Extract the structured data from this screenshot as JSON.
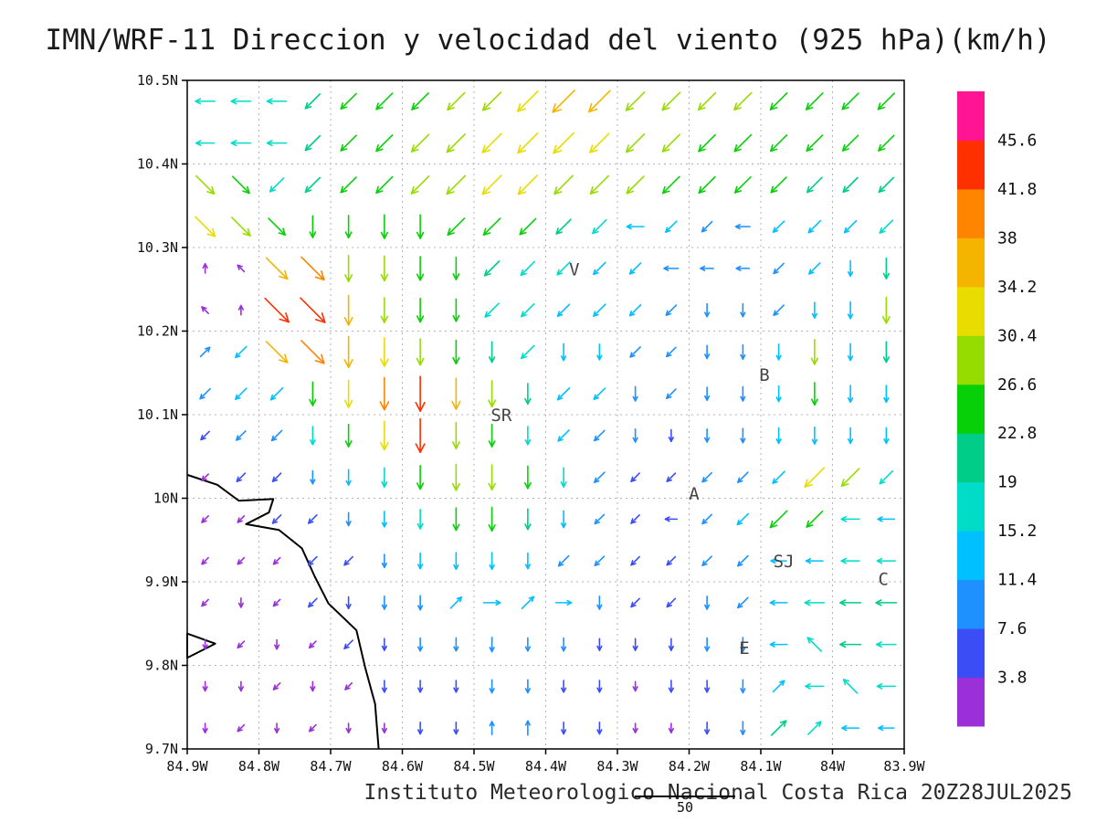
{
  "title": "IMN/WRF-11 Direccion y velocidad del viento (925 hPa)(km/h)",
  "footer": {
    "credit": "Instituto Meteorologico Nacional Costa Rica 20Z28JUL2025",
    "ref_label": "50"
  },
  "chart_data": {
    "type": "quiver",
    "title": "IMN/WRF-11 Direccion y velocidad del viento (925 hPa)(km/h)",
    "units": "km/h",
    "pressure_level": "925 hPa",
    "model": "IMN/WRF-11",
    "valid_time": "20Z28JUL2025",
    "x_axis": {
      "range": [
        84.9,
        83.9
      ],
      "ticks": [
        "84.9W",
        "84.8W",
        "84.7W",
        "84.6W",
        "84.5W",
        "84.4W",
        "84.3W",
        "84.2W",
        "84.1W",
        "84W",
        "83.9W"
      ]
    },
    "y_axis": {
      "range": [
        9.7,
        10.5
      ],
      "ticks": [
        "10.5N",
        "10.4N",
        "10.3N",
        "10.2N",
        "10.1N",
        "10N",
        "9.9N",
        "9.8N",
        "9.7N"
      ]
    },
    "grid": {
      "step_deg": 0.1,
      "style": "dotted"
    },
    "colorbar": {
      "units": "km/h",
      "levels": [
        3.8,
        7.6,
        11.4,
        15.2,
        19,
        22.8,
        26.6,
        30.4,
        34.2,
        38,
        41.8,
        45.6
      ],
      "labels": [
        "3.8",
        "7.6",
        "11.4",
        "15.2",
        "19",
        "22.8",
        "26.6",
        "30.4",
        "34.2",
        "38",
        "41.8",
        "45.6"
      ],
      "colors": [
        "#9b30d9",
        "#3b4ef5",
        "#1e90ff",
        "#00c0ff",
        "#00dcc8",
        "#00cd87",
        "#08d008",
        "#97dc00",
        "#e8dc00",
        "#f4b400",
        "#ff8400",
        "#ff3000",
        "#ff1493"
      ]
    },
    "stations": [
      {
        "label": "V",
        "lon": 84.36,
        "lat": 10.273
      },
      {
        "label": "B",
        "lon": 84.095,
        "lat": 10.147
      },
      {
        "label": "SR",
        "lon": 84.462,
        "lat": 10.099
      },
      {
        "label": "A",
        "lon": 84.193,
        "lat": 10.005
      },
      {
        "label": "SJ",
        "lon": 84.068,
        "lat": 9.924
      },
      {
        "label": "C",
        "lon": 83.929,
        "lat": 9.903
      },
      {
        "label": "E",
        "lon": 84.123,
        "lat": 9.82
      }
    ],
    "coastline": [
      [
        84.9,
        10.028
      ],
      [
        84.858,
        10.016
      ],
      [
        84.828,
        9.997
      ],
      [
        84.78,
        9.999
      ],
      [
        84.786,
        9.983
      ],
      [
        84.818,
        9.969
      ],
      [
        84.772,
        9.962
      ],
      [
        84.74,
        9.94
      ],
      [
        84.722,
        9.906
      ],
      [
        84.703,
        9.874
      ],
      [
        84.664,
        9.842
      ],
      [
        84.652,
        9.798
      ],
      [
        84.638,
        9.754
      ],
      [
        84.633,
        9.7
      ]
    ],
    "coast_spur": [
      [
        84.9,
        9.838
      ],
      [
        84.861,
        9.826
      ],
      [
        84.9,
        9.809
      ]
    ],
    "reference_vector": {
      "speed": 50
    },
    "wind_field": {
      "comment": "tokens are flow-direction + speed km/h, west-to-east per row",
      "lon_start": 84.875,
      "lon_step": 0.05,
      "lats": [
        10.475,
        10.425,
        10.375,
        10.325,
        10.275,
        10.225,
        10.175,
        10.125,
        10.075,
        10.025,
        9.975,
        9.925,
        9.875,
        9.825,
        9.775,
        9.725
      ],
      "rows": [
        "W19 W19 W19 SW21 SW23 SW25 SW26 SW27 SW29 SW34 SW38 SW36 SW30 SW28 SW27 SW27 SW26 SW26 SW25 SW25",
        "W17 W19 W19 SW21 SW23 SW25 SW27 SW29 SW31 SW33 SW34 SW31 SW29 SW27 SW26 SW26 SW25 SW24 SW23 SW23",
        "SE29 SE26 SW19 SW21 SW23 SW25 SW28 SW30 SW31 SW31 SW30 SW29 SW27 SW26 SW25 SW24 SW23 SW22 SW21 SW21",
        "SE33 SE30 SE26 S23 S24 S26 S26 SW26 SW26 SW24 SW21 SW19 W15 SW13 SW11 W11 SW13 SW15 SW15 SW17",
        "N3 NW3 SE36 SE40 S30 S28 S26 S24 SW21 SW19 SW17 SW15 SW13 W11 W9 W9 SW11 SW13 S13 S21",
        "NW3 N3 SE42 SE44 S36 S28 S26 S24 SW19 SW17 SW15 SW15 SW13 SW11 S9 S9 SW11 S13 S15 S30",
        "NE9 SW13 SE36 SE40 S38 S34 S30 S26 S21 SW17 S15 S13 SW11 SW9 S9 S11 S13 S28 S15 S21",
        "SW11 SW13 SW15 S26 S32 S40 S44 S38 S30 S21 SW15 SW13 S11 SW9 S9 S11 S13 S24 S15 S15",
        "SW7 SW9 SW11 S17 S24 S34 S42 S30 S24 S17 SW13 SW11 S9 S7 S9 S11 S13 S15 S13 S13",
        "SW3 SW7 SW7 S9 S13 S19 S26 S30 S28 S24 S19 SW11 SW7 SW7 SW9 SW11 SW15 SW32 SW28 SW17",
        "SW3 SW3 SW7 SW7 S9 S13 S19 S24 S26 S21 S15 SW9 SW7 W7 SW9 SW13 SW26 SW24 W17 W15",
        "SW3 SW3 SW3 SW7 SW7 S9 S13 S15 S15 S13 SW11 SW9 SW7 SW7 SW9 SW11 W13 W15 W17 W17",
        "SW3 S3 SW3 SW7 S7 S9 S11 NE13 E15 NE15 E13 S9 SW7 SW7 S9 SW11 W15 W19 W21 W21",
        "S3 SW3 S3 SW3 SW7 S7 S9 S9 S11 S9 S9 S7 S7 S7 S9 S11 W15 NW19 W21 W19",
        "S3 S3 SW3 S3 SW3 S7 S7 S7 S9 S9 S7 S7 S3 S7 S7 S9 NE13 W17 NW19 W17",
        "S3 SW3 S3 SW3 S3 S3 S7 S7 N9 N11 S7 S7 S3 S3 S7 S9 NE21 NE17 W15 W13"
      ]
    }
  }
}
